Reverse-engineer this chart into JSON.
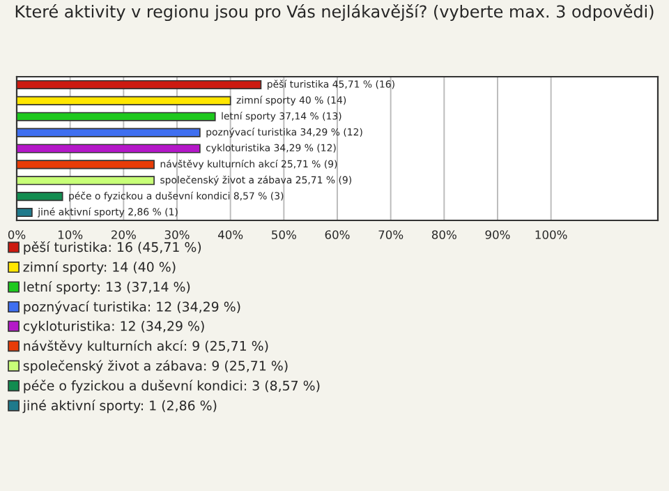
{
  "chart_data": {
    "type": "bar",
    "orientation": "horizontal",
    "title": "Které aktivity v regionu jsou pro Vás nejlákavější? (vyberte max. 3 odpovědi)",
    "categories": [
      null,
      null,
      null,
      null,
      null,
      null,
      null,
      null,
      null
    ],
    "series": [
      {
        "name": "pěší turistika: 16 (45,71 %)",
        "color": "#cc1a10",
        "values": [
          45.71,
          null,
          null,
          null,
          null,
          null,
          null,
          null,
          null
        ],
        "value_labels": [
          "pěší turistika 45,71 % (16)",
          null,
          null,
          null,
          null,
          null,
          null,
          null,
          null
        ]
      },
      {
        "name": "zimní sporty: 14 (40 %)",
        "color": "#ffe600",
        "values": [
          null,
          40,
          null,
          null,
          null,
          null,
          null,
          null,
          null
        ],
        "value_labels": [
          null,
          "zimní sporty 40 % (14)",
          null,
          null,
          null,
          null,
          null,
          null,
          null
        ]
      },
      {
        "name": "letní sporty: 13 (37,14 %)",
        "color": "#1ec81e",
        "values": [
          null,
          null,
          37.14,
          null,
          null,
          null,
          null,
          null,
          null
        ],
        "value_labels": [
          null,
          null,
          "letní sporty 37,14 % (13)",
          null,
          null,
          null,
          null,
          null,
          null
        ]
      },
      {
        "name": "poznývací turistika: 12 (34,29 %)",
        "color": "#3f6ff0",
        "values": [
          null,
          null,
          null,
          34.29,
          null,
          null,
          null,
          null,
          null
        ],
        "value_labels": [
          null,
          null,
          null,
          "poznývací turistika 34,29 % (12)",
          null,
          null,
          null,
          null,
          null
        ]
      },
      {
        "name": "cykloturistika: 12 (34,29 %)",
        "color": "#b418c8",
        "values": [
          null,
          null,
          null,
          null,
          34.29,
          null,
          null,
          null,
          null
        ],
        "value_labels": [
          null,
          null,
          null,
          null,
          "cykloturistika 34,29 % (12)",
          null,
          null,
          null,
          null
        ]
      },
      {
        "name": "návštěvy kulturních akcí: 9 (25,71 %)",
        "color": "#e83c08",
        "values": [
          null,
          null,
          null,
          null,
          null,
          25.71,
          null,
          null,
          null
        ],
        "value_labels": [
          null,
          null,
          null,
          null,
          null,
          "návštěvy kulturních akcí 25,71 % (9)",
          null,
          null,
          null
        ]
      },
      {
        "name": "společenský život a zábava: 9 (25,71 %)",
        "color": "#c8ff78",
        "values": [
          null,
          null,
          null,
          null,
          null,
          null,
          25.71,
          null,
          null
        ],
        "value_labels": [
          null,
          null,
          null,
          null,
          null,
          null,
          "společenský život a zábava 25,71 % (9)",
          null,
          null
        ]
      },
      {
        "name": "péče o fyzickou a duševní kondici: 3 (8,57 %)",
        "color": "#128c50",
        "values": [
          null,
          null,
          null,
          null,
          null,
          null,
          null,
          8.57,
          null
        ],
        "value_labels": [
          null,
          null,
          null,
          null,
          null,
          null,
          null,
          "péče o fyzickou a duševní kondici 8,57 % (3)",
          null
        ]
      },
      {
        "name": "jiné aktivní sporty: 1 (2,86 %)",
        "color": "#1f7a8c",
        "values": [
          null,
          null,
          null,
          null,
          null,
          null,
          null,
          null,
          2.86
        ],
        "value_labels": [
          null,
          null,
          null,
          null,
          null,
          null,
          null,
          null,
          "jiné aktivní sporty 2,86 % (1)"
        ]
      }
    ],
    "legend": "bottom",
    "xlim": [
      0,
      120
    ],
    "xticks": [
      {
        "value": 0,
        "label": "0%"
      },
      {
        "value": 10,
        "label": "10%"
      },
      {
        "value": 20,
        "label": "20%"
      },
      {
        "value": 30,
        "label": "30%"
      },
      {
        "value": 40,
        "label": "40%"
      },
      {
        "value": 50,
        "label": "50%"
      },
      {
        "value": 60,
        "label": "60%"
      },
      {
        "value": 70,
        "label": "70%"
      },
      {
        "value": 80,
        "label": "80%"
      },
      {
        "value": 90,
        "label": "90%"
      },
      {
        "value": 100,
        "label": "100%"
      }
    ],
    "grid": "x"
  }
}
